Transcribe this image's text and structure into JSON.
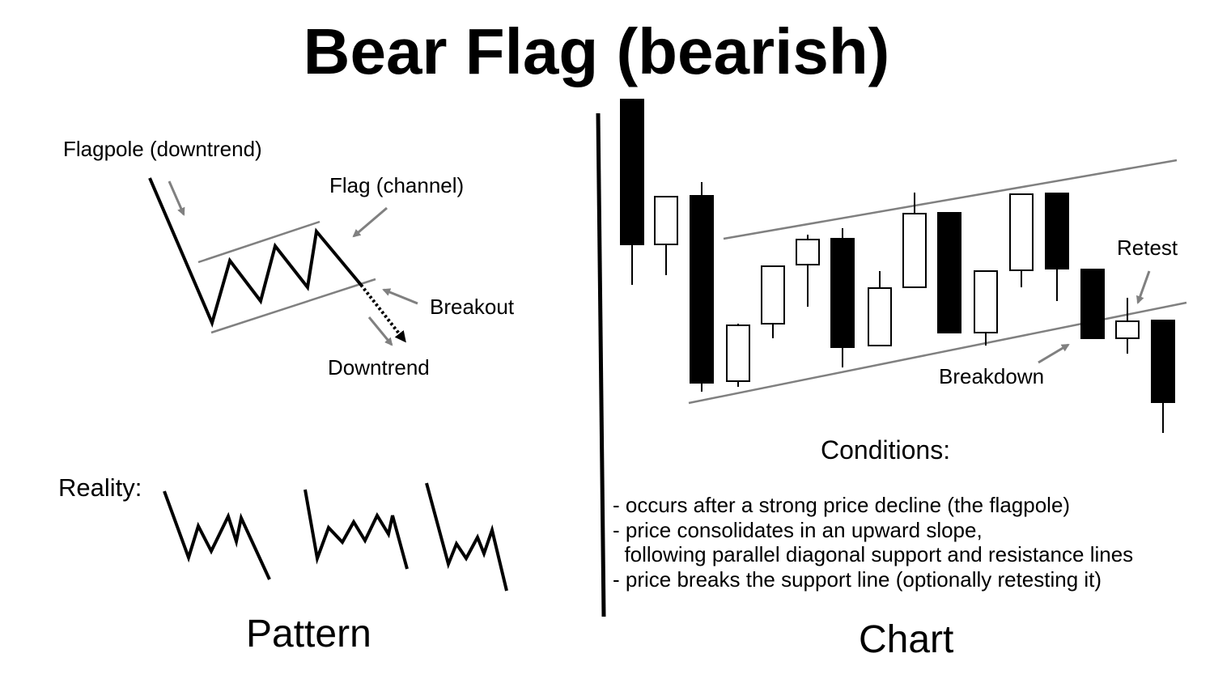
{
  "title": "Bear Flag (bearish)",
  "pattern": {
    "labels": {
      "flagpole": "Flagpole (downtrend)",
      "flag": "Flag (channel)",
      "breakout": "Breakout",
      "downtrend": "Downtrend",
      "reality": "Reality:"
    },
    "caption": "Pattern"
  },
  "chart": {
    "labels": {
      "retest": "Retest",
      "breakdown": "Breakdown"
    },
    "caption": "Chart",
    "candle_colors": {
      "bearish": "#000000",
      "bullish": "#ffffff"
    }
  },
  "conditions": {
    "title": "Conditions:",
    "items": [
      "- occurs after a strong price decline (the flagpole)",
      "- price consolidates in an upward slope,",
      "  following parallel diagonal support and resistance lines",
      "- price breaks the support line (optionally retesting it)"
    ]
  },
  "colors": {
    "text": "#000000",
    "guide_lines": "#808080",
    "background": "#ffffff"
  }
}
